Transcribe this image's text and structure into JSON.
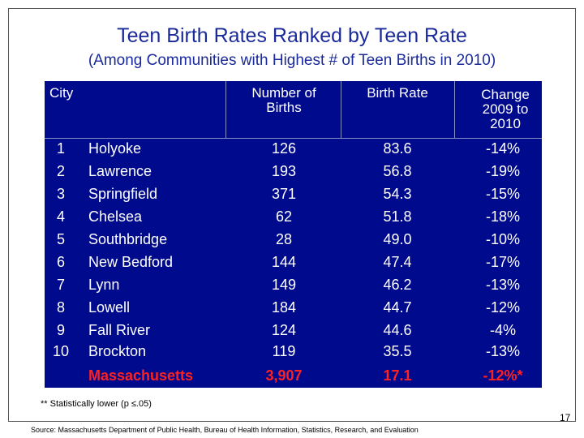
{
  "title": "Teen Birth Rates Ranked by Teen Rate",
  "subtitle": "(Among Communities with Highest # of Teen Births in 2010)",
  "table": {
    "headers": [
      "City",
      "Number of Births",
      "Birth Rate",
      "Change 2009 to 2010"
    ],
    "rows": [
      [
        "1",
        "Holyoke",
        "126",
        "83.6",
        "-14%"
      ],
      [
        "2",
        "Lawrence",
        "193",
        "56.8",
        "-19%"
      ],
      [
        "3",
        "Springfield",
        "371",
        "54.3",
        "-15%"
      ],
      [
        "4",
        "Chelsea",
        "62",
        "51.8",
        "-18%"
      ],
      [
        "5",
        "Southbridge",
        "28",
        "49.0",
        "-10%"
      ],
      [
        "6",
        "New Bedford",
        "144",
        "47.4",
        "-17%"
      ],
      [
        "7",
        "Lynn",
        "149",
        "46.2",
        "-13%"
      ],
      [
        "8",
        "Lowell",
        "184",
        "44.7",
        "-12%"
      ],
      [
        "9",
        "Fall River",
        "124",
        "44.6",
        "-4%"
      ],
      [
        "10",
        "Brockton",
        "119",
        "35.5",
        "-13%"
      ]
    ],
    "total": [
      "Massachusetts",
      "3,907",
      "17.1",
      "-12%*"
    ]
  },
  "footnote": "** Statistically lower (p ≤.05)",
  "source": "Source: Massachusetts Department of Public Health, Bureau of Health Information, Statistics, Research, and Evaluation",
  "page_number": "17"
}
